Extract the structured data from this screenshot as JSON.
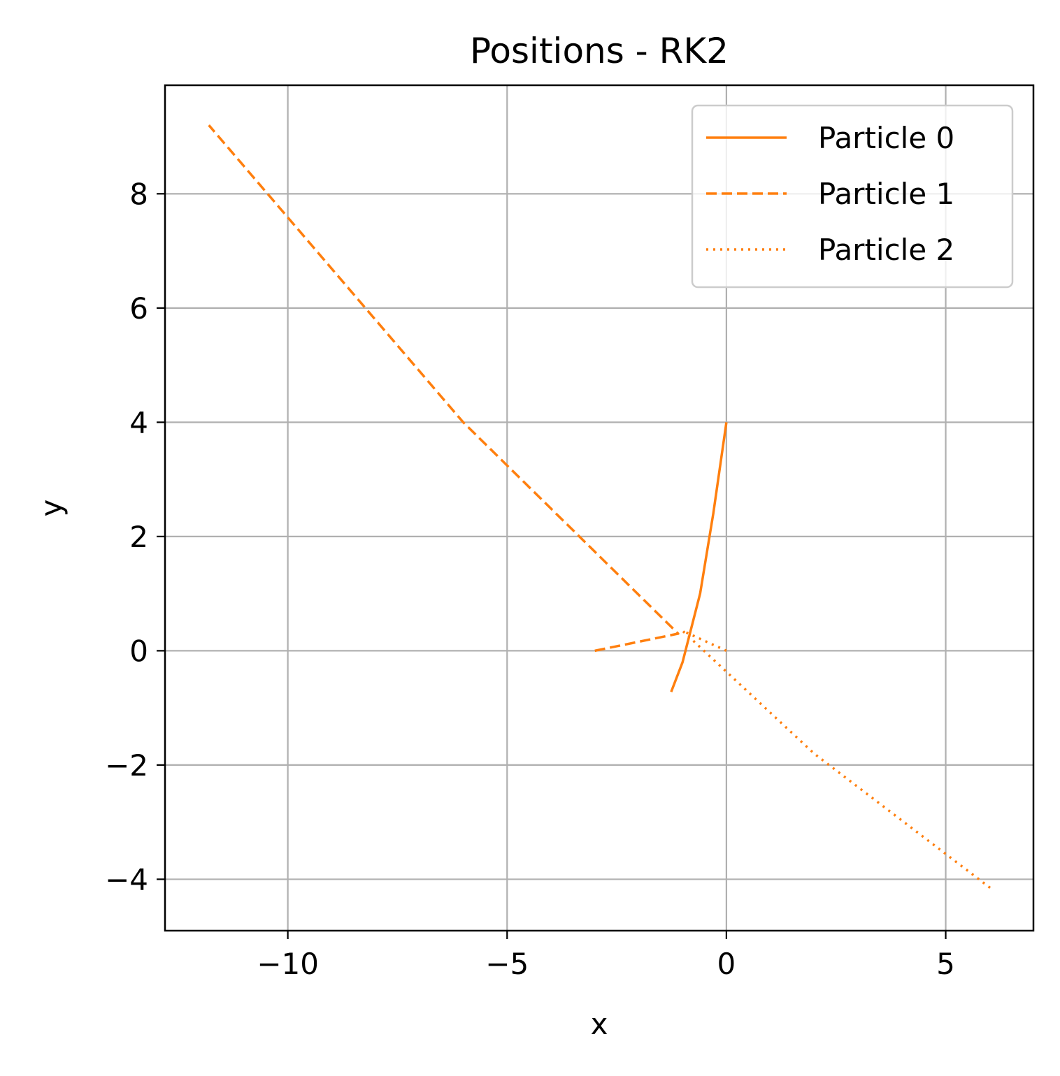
{
  "chart_data": {
    "type": "line",
    "title": "Positions - RK2",
    "xlabel": "x",
    "ylabel": "y",
    "xlim": [
      -12.8,
      7.0
    ],
    "ylim": [
      -4.9,
      9.9
    ],
    "xticks": [
      -10,
      -5,
      0,
      5
    ],
    "xtick_labels": [
      "−10",
      "−5",
      "0",
      "5"
    ],
    "yticks": [
      -4,
      -2,
      0,
      2,
      4,
      6,
      8
    ],
    "ytick_labels": [
      "−4",
      "−2",
      "0",
      "2",
      "4",
      "6",
      "8"
    ],
    "grid": true,
    "legend_position": "top-right",
    "line_color": "#ff7f0e",
    "series": [
      {
        "name": "Particle 0",
        "style": "solid",
        "x": [
          0.0,
          -0.3,
          -0.6,
          -1.0,
          -1.26
        ],
        "y": [
          4.0,
          2.4,
          1.0,
          -0.2,
          -0.72
        ]
      },
      {
        "name": "Particle 1",
        "style": "dashed",
        "x": [
          -3.0,
          -1.1,
          -6.0,
          -11.8
        ],
        "y": [
          0.0,
          0.3,
          4.0,
          9.2
        ]
      },
      {
        "name": "Particle 2",
        "style": "dotted",
        "x": [
          0.0,
          -1.0,
          2.0,
          6.1
        ],
        "y": [
          0.0,
          0.35,
          -1.8,
          -4.2
        ]
      }
    ]
  }
}
